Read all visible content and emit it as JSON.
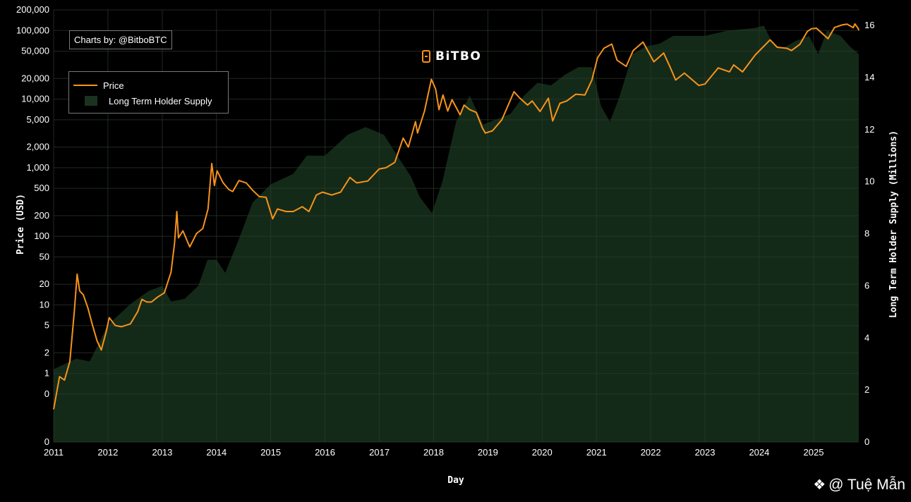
{
  "credit": "Charts by: @BitboBTC",
  "brand": {
    "name": "BiTBO",
    "logo": "bitbo-logo-icon"
  },
  "watermark": {
    "icon": "binance-diamond-icon",
    "text": "@ Tuệ Mẫn"
  },
  "colors": {
    "price": "#f7931a",
    "supply_fill": "#142a18",
    "grid": "#2e3a2e",
    "background": "#000000"
  },
  "chart_data": {
    "type": "line",
    "title": "",
    "xlabel": "Day",
    "ylabel": "Price (USD)",
    "y2label": "Long Term Holder Supply (Millions)",
    "grid": true,
    "legend_position": "top-left",
    "x_ticks": [
      "2011",
      "2012",
      "2013",
      "2014",
      "2015",
      "2016",
      "2017",
      "2018",
      "2019",
      "2020",
      "2021",
      "2022",
      "2023",
      "2024",
      "2025"
    ],
    "xlim": [
      "2011-01-01",
      "2025-11-01"
    ],
    "y_scale": "log",
    "ylim": [
      0.1,
      200000
    ],
    "y_ticks": [
      {
        "value": 0.1,
        "label": "0"
      },
      {
        "value": 0.5,
        "label": "0"
      },
      {
        "value": 1,
        "label": "1"
      },
      {
        "value": 2,
        "label": "2"
      },
      {
        "value": 5,
        "label": "5"
      },
      {
        "value": 10,
        "label": "10"
      },
      {
        "value": 20,
        "label": "20"
      },
      {
        "value": 50,
        "label": "50"
      },
      {
        "value": 100,
        "label": "100"
      },
      {
        "value": 200,
        "label": "200"
      },
      {
        "value": 500,
        "label": "500"
      },
      {
        "value": 1000,
        "label": "1,000"
      },
      {
        "value": 2000,
        "label": "2,000"
      },
      {
        "value": 5000,
        "label": "5,000"
      },
      {
        "value": 10000,
        "label": "10,000"
      },
      {
        "value": 20000,
        "label": "20,000"
      },
      {
        "value": 50000,
        "label": "50,000"
      },
      {
        "value": 100000,
        "label": "100,000"
      },
      {
        "value": 200000,
        "label": "200,000"
      }
    ],
    "y2lim": [
      0,
      16.6
    ],
    "y2_ticks": [
      {
        "value": 0,
        "label": "0"
      },
      {
        "value": 2,
        "label": "2"
      },
      {
        "value": 4,
        "label": "4"
      },
      {
        "value": 6,
        "label": "6"
      },
      {
        "value": 8,
        "label": "8"
      },
      {
        "value": 10,
        "label": "10"
      },
      {
        "value": 12,
        "label": "12"
      },
      {
        "value": 14,
        "label": "14"
      },
      {
        "value": 16,
        "label": "16"
      }
    ],
    "series": [
      {
        "name": "Price",
        "type": "line",
        "axis": "left",
        "points": [
          [
            "2011-01-01",
            0.3
          ],
          [
            "2011-02-10",
            0.9
          ],
          [
            "2011-03-15",
            0.8
          ],
          [
            "2011-04-20",
            1.5
          ],
          [
            "2011-05-20",
            8
          ],
          [
            "2011-06-08",
            28
          ],
          [
            "2011-06-25",
            16
          ],
          [
            "2011-07-20",
            14
          ],
          [
            "2011-08-20",
            9
          ],
          [
            "2011-09-20",
            5
          ],
          [
            "2011-10-20",
            3
          ],
          [
            "2011-11-18",
            2.2
          ],
          [
            "2011-12-20",
            4
          ],
          [
            "2012-01-10",
            6.5
          ],
          [
            "2012-02-20",
            5
          ],
          [
            "2012-04-01",
            4.8
          ],
          [
            "2012-06-01",
            5.3
          ],
          [
            "2012-07-20",
            8
          ],
          [
            "2012-08-17",
            12
          ],
          [
            "2012-09-20",
            11
          ],
          [
            "2012-10-20",
            11
          ],
          [
            "2012-12-01",
            13
          ],
          [
            "2013-01-15",
            15
          ],
          [
            "2013-03-01",
            30
          ],
          [
            "2013-03-25",
            80
          ],
          [
            "2013-04-09",
            230
          ],
          [
            "2013-04-20",
            95
          ],
          [
            "2013-05-20",
            120
          ],
          [
            "2013-07-05",
            70
          ],
          [
            "2013-08-20",
            110
          ],
          [
            "2013-10-01",
            130
          ],
          [
            "2013-11-05",
            250
          ],
          [
            "2013-11-30",
            1150
          ],
          [
            "2013-12-18",
            550
          ],
          [
            "2014-01-05",
            900
          ],
          [
            "2014-02-15",
            600
          ],
          [
            "2014-03-25",
            480
          ],
          [
            "2014-04-20",
            450
          ],
          [
            "2014-06-01",
            650
          ],
          [
            "2014-07-20",
            600
          ],
          [
            "2014-09-01",
            470
          ],
          [
            "2014-10-15",
            380
          ],
          [
            "2014-12-01",
            370
          ],
          [
            "2015-01-14",
            180
          ],
          [
            "2015-02-15",
            250
          ],
          [
            "2015-04-15",
            230
          ],
          [
            "2015-06-01",
            230
          ],
          [
            "2015-08-01",
            270
          ],
          [
            "2015-09-15",
            230
          ],
          [
            "2015-11-04",
            400
          ],
          [
            "2015-12-15",
            440
          ],
          [
            "2016-02-15",
            400
          ],
          [
            "2016-04-15",
            440
          ],
          [
            "2016-06-17",
            720
          ],
          [
            "2016-08-01",
            600
          ],
          [
            "2016-10-15",
            640
          ],
          [
            "2016-12-31",
            960
          ],
          [
            "2017-02-15",
            1000
          ],
          [
            "2017-04-15",
            1200
          ],
          [
            "2017-06-10",
            2700
          ],
          [
            "2017-07-15",
            2000
          ],
          [
            "2017-09-01",
            4700
          ],
          [
            "2017-09-15",
            3200
          ],
          [
            "2017-11-01",
            6700
          ],
          [
            "2017-12-17",
            19500
          ],
          [
            "2018-01-15",
            14000
          ],
          [
            "2018-02-06",
            7000
          ],
          [
            "2018-03-05",
            11500
          ],
          [
            "2018-04-06",
            6700
          ],
          [
            "2018-05-05",
            9800
          ],
          [
            "2018-06-28",
            5900
          ],
          [
            "2018-07-25",
            8200
          ],
          [
            "2018-09-01",
            7000
          ],
          [
            "2018-10-15",
            6400
          ],
          [
            "2018-11-25",
            3800
          ],
          [
            "2018-12-15",
            3200
          ],
          [
            "2019-02-01",
            3450
          ],
          [
            "2019-04-05",
            5000
          ],
          [
            "2019-06-26",
            12800
          ],
          [
            "2019-08-01",
            10500
          ],
          [
            "2019-09-25",
            8200
          ],
          [
            "2019-10-26",
            9400
          ],
          [
            "2019-12-18",
            6600
          ],
          [
            "2020-02-12",
            10300
          ],
          [
            "2020-03-12",
            4800
          ],
          [
            "2020-04-30",
            8700
          ],
          [
            "2020-06-15",
            9400
          ],
          [
            "2020-08-15",
            11800
          ],
          [
            "2020-10-15",
            11500
          ],
          [
            "2020-12-01",
            19000
          ],
          [
            "2021-01-08",
            40000
          ],
          [
            "2021-02-20",
            55000
          ],
          [
            "2021-04-14",
            63500
          ],
          [
            "2021-05-19",
            37000
          ],
          [
            "2021-07-20",
            30000
          ],
          [
            "2021-09-05",
            51000
          ],
          [
            "2021-11-10",
            68000
          ],
          [
            "2022-01-22",
            35000
          ],
          [
            "2022-03-29",
            47000
          ],
          [
            "2022-05-12",
            29000
          ],
          [
            "2022-06-18",
            19000
          ],
          [
            "2022-08-15",
            24000
          ],
          [
            "2022-11-21",
            15800
          ],
          [
            "2023-01-01",
            16600
          ],
          [
            "2023-03-31",
            28500
          ],
          [
            "2023-06-15",
            25000
          ],
          [
            "2023-07-13",
            31500
          ],
          [
            "2023-09-11",
            25000
          ],
          [
            "2023-12-05",
            44000
          ],
          [
            "2024-03-14",
            73000
          ],
          [
            "2024-05-01",
            57000
          ],
          [
            "2024-07-05",
            55000
          ],
          [
            "2024-08-05",
            51000
          ],
          [
            "2024-10-01",
            63000
          ],
          [
            "2024-11-20",
            97000
          ],
          [
            "2024-12-17",
            106000
          ],
          [
            "2025-01-20",
            108000
          ],
          [
            "2025-04-08",
            76000
          ],
          [
            "2025-05-22",
            111000
          ],
          [
            "2025-07-14",
            121000
          ],
          [
            "2025-08-14",
            124000
          ],
          [
            "2025-09-25",
            110000
          ],
          [
            "2025-10-06",
            125000
          ],
          [
            "2025-10-28",
            107000
          ],
          [
            "2025-11-01",
            100000
          ]
        ]
      },
      {
        "name": "Long Term Holder Supply",
        "type": "area",
        "axis": "right",
        "points": [
          [
            "2011-01-01",
            2.8
          ],
          [
            "2011-06-01",
            3.2
          ],
          [
            "2011-09-01",
            3.1
          ],
          [
            "2012-01-01",
            4.5
          ],
          [
            "2012-06-01",
            5.3
          ],
          [
            "2012-10-01",
            5.8
          ],
          [
            "2013-01-01",
            6.0
          ],
          [
            "2013-03-01",
            5.4
          ],
          [
            "2013-06-01",
            5.5
          ],
          [
            "2013-09-01",
            6.0
          ],
          [
            "2013-11-01",
            7.0
          ],
          [
            "2014-01-01",
            7.0
          ],
          [
            "2014-03-01",
            6.5
          ],
          [
            "2014-06-01",
            7.8
          ],
          [
            "2014-09-01",
            9.2
          ],
          [
            "2015-01-01",
            9.9
          ],
          [
            "2015-06-01",
            10.3
          ],
          [
            "2015-09-01",
            11.0
          ],
          [
            "2016-01-01",
            11.0
          ],
          [
            "2016-06-01",
            11.8
          ],
          [
            "2016-10-01",
            12.1
          ],
          [
            "2017-02-01",
            11.8
          ],
          [
            "2017-05-01",
            11.0
          ],
          [
            "2017-08-01",
            10.2
          ],
          [
            "2017-10-01",
            9.4
          ],
          [
            "2017-12-20",
            8.8
          ],
          [
            "2018-03-01",
            10.0
          ],
          [
            "2018-06-01",
            12.3
          ],
          [
            "2018-09-01",
            13.3
          ],
          [
            "2018-12-01",
            12.2
          ],
          [
            "2019-03-01",
            12.4
          ],
          [
            "2019-06-01",
            12.6
          ],
          [
            "2019-09-01",
            13.3
          ],
          [
            "2019-12-01",
            13.8
          ],
          [
            "2020-03-01",
            13.7
          ],
          [
            "2020-06-01",
            14.1
          ],
          [
            "2020-09-01",
            14.4
          ],
          [
            "2020-12-01",
            14.4
          ],
          [
            "2021-02-01",
            12.9
          ],
          [
            "2021-04-01",
            12.3
          ],
          [
            "2021-06-01",
            13.2
          ],
          [
            "2021-09-01",
            14.9
          ],
          [
            "2021-12-01",
            15.2
          ],
          [
            "2022-03-01",
            15.3
          ],
          [
            "2022-06-01",
            15.6
          ],
          [
            "2022-09-01",
            15.6
          ],
          [
            "2023-01-01",
            15.6
          ],
          [
            "2023-06-01",
            15.8
          ],
          [
            "2023-12-01",
            15.9
          ],
          [
            "2024-02-01",
            16.0
          ],
          [
            "2024-04-01",
            15.3
          ],
          [
            "2024-06-01",
            15.1
          ],
          [
            "2024-09-01",
            15.4
          ],
          [
            "2024-12-01",
            15.6
          ],
          [
            "2025-02-01",
            14.9
          ],
          [
            "2025-04-01",
            15.8
          ],
          [
            "2025-07-01",
            15.6
          ],
          [
            "2025-09-01",
            15.2
          ],
          [
            "2025-11-01",
            14.9
          ]
        ]
      }
    ]
  }
}
